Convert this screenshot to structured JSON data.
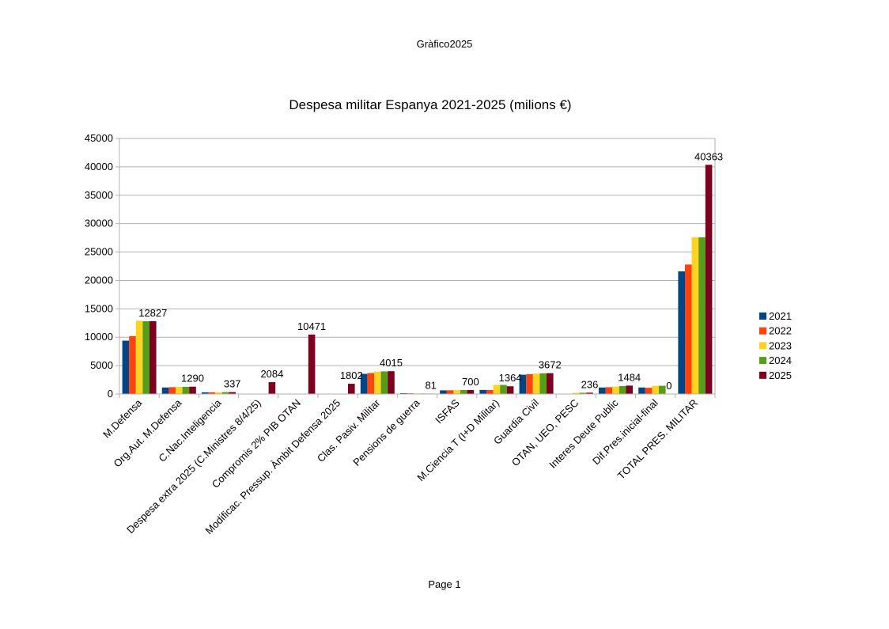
{
  "page": {
    "header": "Gràfico2025",
    "footer": "Page 1"
  },
  "chart_data": {
    "type": "bar",
    "title": "Despesa militar Espanya 2021-2025 (milions €)",
    "xlabel": "",
    "ylabel": "",
    "ylim": [
      0,
      45000
    ],
    "yticks": [
      0,
      5000,
      10000,
      15000,
      20000,
      25000,
      30000,
      35000,
      40000,
      45000
    ],
    "grid": true,
    "legend_position": "right",
    "categories": [
      "M.Defensa",
      "Org.Aut. M.Defensa",
      "C.Nac.Inteligencia",
      "Despesa extra 2025 (C.Ministres 8/4/25)",
      "Compromis 2% PIB OTAN",
      "Modificac. Pressup. Àmbit Defensa 2025",
      "Clas. Pasiv. Militar",
      "Pensions de guerra",
      "ISFAS",
      "M.Ciencia T (I+D Militar)",
      "Guardia Civil",
      "OTAN, UEO, PESC",
      "Interes Deute Public",
      "Dif.Pres.inicial-final",
      "TOTAL PRES. MILITAR"
    ],
    "series": [
      {
        "name": "2021",
        "color": "#004586",
        "values": [
          9400,
          1150,
          300,
          0,
          0,
          0,
          3550,
          140,
          640,
          720,
          3400,
          30,
          1150,
          1150,
          21600
        ]
      },
      {
        "name": "2022",
        "color": "#ff420e",
        "values": [
          10200,
          1200,
          310,
          0,
          0,
          0,
          3700,
          130,
          660,
          700,
          3500,
          60,
          1200,
          1100,
          22800
        ]
      },
      {
        "name": "2023",
        "color": "#ffd320",
        "values": [
          12900,
          1250,
          320,
          0,
          0,
          0,
          3950,
          110,
          680,
          1600,
          3600,
          200,
          1300,
          1450,
          27600
        ]
      },
      {
        "name": "2024",
        "color": "#579d1c",
        "values": [
          12827,
          1270,
          330,
          0,
          0,
          0,
          3980,
          95,
          690,
          1600,
          3650,
          220,
          1400,
          1450,
          27600
        ]
      },
      {
        "name": "2025",
        "color": "#7e0021",
        "values": [
          12827,
          1290,
          337,
          2084,
          10471,
          1802,
          4015,
          81,
          700,
          1364,
          3672,
          236,
          1484,
          0,
          40363
        ]
      }
    ],
    "data_labels": [
      {
        "category_index": 0,
        "text": "12827"
      },
      {
        "category_index": 1,
        "text": "1290"
      },
      {
        "category_index": 2,
        "text": "337"
      },
      {
        "category_index": 3,
        "text": "2084"
      },
      {
        "category_index": 4,
        "text": "10471"
      },
      {
        "category_index": 5,
        "text": "1802"
      },
      {
        "category_index": 6,
        "text": "4015"
      },
      {
        "category_index": 7,
        "text": "81"
      },
      {
        "category_index": 8,
        "text": "700"
      },
      {
        "category_index": 9,
        "text": "1364"
      },
      {
        "category_index": 10,
        "text": "3672"
      },
      {
        "category_index": 11,
        "text": "236"
      },
      {
        "category_index": 12,
        "text": "1484"
      },
      {
        "category_index": 13,
        "text": "0"
      },
      {
        "category_index": 14,
        "text": "40363"
      }
    ]
  }
}
